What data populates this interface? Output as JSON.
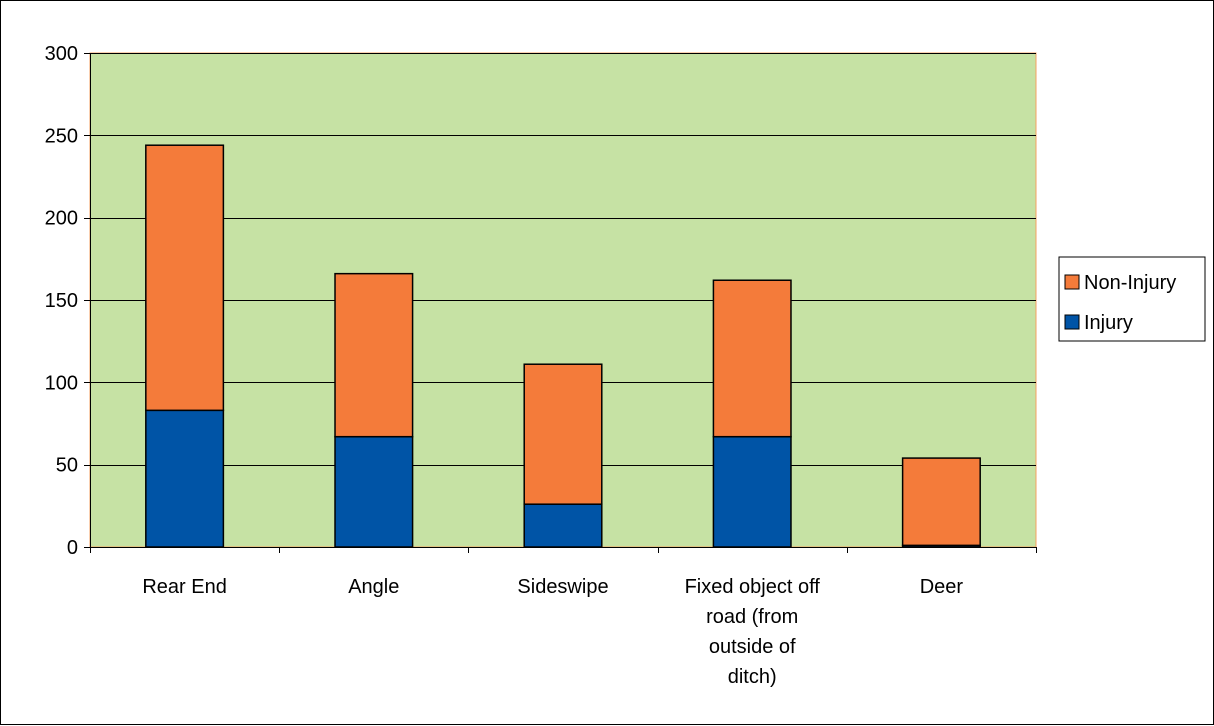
{
  "chart_data": {
    "type": "bar",
    "stacked": true,
    "title": "",
    "xlabel": "",
    "ylabel": "",
    "categories": [
      [
        "Rear End"
      ],
      [
        "Angle"
      ],
      [
        "Sideswipe"
      ],
      [
        "Fixed object off",
        "road (from",
        "outside of",
        "ditch)"
      ],
      [
        "Deer"
      ]
    ],
    "series": [
      {
        "name": "Injury",
        "color": "#0054A6",
        "values": [
          83,
          67,
          26,
          67,
          1
        ]
      },
      {
        "name": "Non-Injury",
        "color": "#F47B3A",
        "values": [
          161,
          99,
          85,
          95,
          53
        ]
      }
    ],
    "ylim": [
      0,
      300
    ],
    "yticks": [
      0,
      50,
      100,
      150,
      200,
      250,
      300
    ],
    "grid": true,
    "plot_background": "#C6E2A4",
    "plot_border_color": "#F4A261",
    "legend_position": "right",
    "legend_order": [
      "Non-Injury",
      "Injury"
    ]
  }
}
